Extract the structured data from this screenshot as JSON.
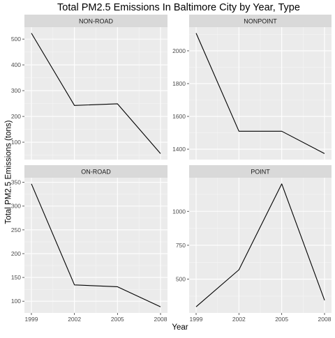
{
  "chart_data": {
    "type": "line",
    "layout": "facet-grid-2x2",
    "title": "Total PM2.5 Emissions In Baltimore City by Year, Type",
    "xlabel": "Year",
    "ylabel": "Total PM2.5 Emissions (tons)",
    "x": [
      1999,
      2002,
      2005,
      2008
    ],
    "x_tick_labels": [
      "1999",
      "2002",
      "2005",
      "2008"
    ],
    "xlim": [
      1999,
      2008
    ],
    "grid": true,
    "colors": {
      "panel_bg": "#ebebeb",
      "strip_bg": "#d9d9d9",
      "grid_major": "#ffffff",
      "grid_minor": "#f5f5f5",
      "line": "#000000",
      "text": "#4d4d4d",
      "title": "#000000"
    },
    "panels": [
      {
        "strip": "NON-ROAD",
        "values": [
          522.94,
          242.63,
          248.93,
          55.82
        ],
        "ylim": [
          32.5,
          546.3
        ],
        "yticks": [
          100,
          200,
          300,
          400,
          500
        ]
      },
      {
        "strip": "NONPOINT",
        "values": [
          2107.63,
          1509.5,
          1509.5,
          1373.21
        ],
        "ylim": [
          1336.5,
          2144.3
        ],
        "yticks": [
          1400,
          1600,
          1800,
          2000
        ]
      },
      {
        "strip": "ON-ROAD",
        "values": [
          346.82,
          134.31,
          130.43,
          88.28
        ],
        "ylim": [
          75.4,
          359.7
        ],
        "yticks": [
          100,
          150,
          200,
          250,
          300,
          350
        ]
      },
      {
        "strip": "POINT",
        "values": [
          296.8,
          569.26,
          1202.49,
          344.98
        ],
        "ylim": [
          251.5,
          1247.8
        ],
        "yticks": [
          500,
          750,
          1000
        ]
      }
    ]
  }
}
